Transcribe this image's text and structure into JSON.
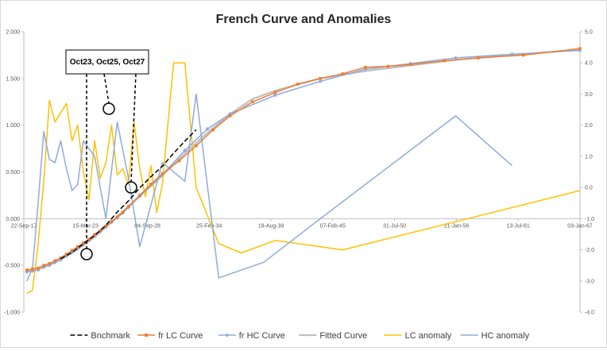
{
  "chart_data": {
    "type": "line",
    "title": "French Curve and Anomalies",
    "x_ticks": [
      "22-Sep-17",
      "15-Mar-23",
      "04-Sep-28",
      "25-Feb-34",
      "18-Aug-39",
      "07-Feb-45",
      "31-Jul-50",
      "21-Jan-56",
      "13-Jul-61",
      "03-Jan-67"
    ],
    "x_tick_years": [
      1917.73,
      1923.2,
      1928.68,
      1934.15,
      1939.63,
      1945.1,
      1950.58,
      1956.06,
      1961.53,
      1967.01
    ],
    "xlim": [
      1917.73,
      1967.01
    ],
    "y_left": {
      "ticks": [
        "2.000",
        "1.500",
        "1.000",
        "0.500",
        "0.000",
        "-0.500",
        "-1.000"
      ],
      "values": [
        2,
        1.5,
        1,
        0.5,
        0,
        -0.5,
        -1
      ],
      "range": [
        -1,
        2
      ]
    },
    "y_right": {
      "ticks": [
        "5.0",
        "4.0",
        "3.0",
        "2.0",
        "1.0",
        "0.0",
        "-1.0",
        "-2.0",
        "-3.0",
        "-4.0"
      ],
      "values": [
        5,
        4,
        3,
        2,
        1,
        0,
        -1,
        -2,
        -3,
        -4
      ],
      "range": [
        -4,
        5
      ]
    },
    "grid": false,
    "legend_position": "bottom",
    "annotation": {
      "text": "Oct23, Oct25, Oct27"
    },
    "series": [
      {
        "name": "Bnchmark",
        "color": "#000000",
        "dash": "6,3",
        "axis": "left",
        "marker": "none",
        "x": [
          1921.0,
          1922.0,
          1923.0,
          1924.0,
          1925.0,
          1926.0,
          1927.0,
          1928.0,
          1929.0,
          1930.0,
          1931.0,
          1932.0,
          1933.0
        ],
        "y": [
          -0.43,
          -0.36,
          -0.27,
          -0.18,
          -0.07,
          0.07,
          0.19,
          0.33,
          0.45,
          0.56,
          0.7,
          0.83,
          0.95
        ]
      },
      {
        "name": "fr LC Curve",
        "color": "#ed7d31",
        "axis": "left",
        "marker": "square",
        "x": [
          1918.0,
          1918.5,
          1919.0,
          1919.5,
          1920.0,
          1920.5,
          1921.0,
          1921.5,
          1922.0,
          1922.5,
          1923.0,
          1923.5,
          1924.0,
          1924.5,
          1925.0,
          1925.5,
          1926.0,
          1926.5,
          1927.0,
          1928.0,
          1929.0,
          1930.0,
          1931.5,
          1933.0,
          1934.5,
          1936.0,
          1938.0,
          1940.0,
          1942.0,
          1944.0,
          1946.0,
          1948.0,
          1950.0,
          1952.0,
          1955.0,
          1958.0,
          1962.0,
          1967.0
        ],
        "y": [
          -0.55,
          -0.54,
          -0.53,
          -0.5,
          -0.48,
          -0.45,
          -0.42,
          -0.38,
          -0.34,
          -0.3,
          -0.26,
          -0.22,
          -0.17,
          -0.13,
          -0.08,
          -0.03,
          0.02,
          0.07,
          0.13,
          0.25,
          0.37,
          0.48,
          0.62,
          0.78,
          0.95,
          1.1,
          1.25,
          1.35,
          1.44,
          1.5,
          1.55,
          1.62,
          1.63,
          1.65,
          1.69,
          1.72,
          1.75,
          1.82
        ]
      },
      {
        "name": "fr HC Curve",
        "color": "#8faadc",
        "axis": "left",
        "marker": "diamond",
        "x": [
          1918.0,
          1918.5,
          1919.0,
          1919.5,
          1920.0,
          1920.5,
          1921.0,
          1921.5,
          1922.0,
          1922.5,
          1923.0,
          1923.5,
          1924.0,
          1924.5,
          1925.0,
          1925.5,
          1926.0,
          1926.5,
          1927.0,
          1928.0,
          1930.0,
          1932.0,
          1934.0,
          1936.0,
          1940.0,
          1944.0,
          1948.0,
          1952.0,
          1956.0,
          1961.0,
          1967.0
        ],
        "y": [
          -0.57,
          -0.56,
          -0.55,
          -0.52,
          -0.5,
          -0.47,
          -0.44,
          -0.4,
          -0.36,
          -0.32,
          -0.28,
          -0.23,
          -0.18,
          -0.14,
          -0.09,
          -0.04,
          0.01,
          0.06,
          0.12,
          0.24,
          0.47,
          0.73,
          0.96,
          1.12,
          1.32,
          1.47,
          1.6,
          1.66,
          1.72,
          1.76,
          1.8
        ]
      },
      {
        "name": "Fitted Curve",
        "color": "#bfbfbf",
        "axis": "left",
        "marker": "none",
        "x": [
          1918.0,
          1920.0,
          1922.0,
          1924.0,
          1926.0,
          1928.0,
          1930.0,
          1932.0,
          1934.0,
          1936.0,
          1938.0,
          1940.0,
          1944.0,
          1948.0,
          1952.0,
          1956.0,
          1960.0,
          1967.0
        ],
        "y": [
          -0.56,
          -0.49,
          -0.37,
          -0.2,
          0.02,
          0.24,
          0.46,
          0.7,
          0.92,
          1.12,
          1.28,
          1.37,
          1.5,
          1.58,
          1.64,
          1.7,
          1.74,
          1.81
        ]
      },
      {
        "name": "LC anomaly",
        "color": "#ffc000",
        "axis": "right",
        "marker": "none",
        "x": [
          1918.0,
          1918.5,
          1919.0,
          1919.5,
          1920.0,
          1920.5,
          1921.0,
          1921.5,
          1922.0,
          1922.5,
          1923.0,
          1923.5,
          1924.0,
          1924.5,
          1925.0,
          1925.5,
          1926.0,
          1926.5,
          1927.0,
          1927.5,
          1928.0,
          1928.5,
          1929.0,
          1929.5,
          1930.0,
          1931.0,
          1932.0,
          1933.0,
          1935.0,
          1937.0,
          1940.0,
          1946.0,
          1967.0
        ],
        "y": [
          -3.4,
          -3.3,
          -1.8,
          0.2,
          2.8,
          2.1,
          2.4,
          2.7,
          1.5,
          2.0,
          0.5,
          -0.4,
          1.5,
          0.3,
          0.8,
          2.0,
          0.4,
          0.6,
          0.1,
          2.1,
          0.6,
          -0.3,
          0.7,
          -0.8,
          0.1,
          4.0,
          4.0,
          0.0,
          -1.8,
          -2.1,
          -1.7,
          -2.0,
          -0.1
        ]
      },
      {
        "name": "HC anomaly",
        "color": "#8faadc",
        "axis": "right",
        "marker": "none",
        "x": [
          1918.0,
          1918.5,
          1919.0,
          1919.5,
          1920.0,
          1920.5,
          1921.0,
          1921.5,
          1922.0,
          1922.5,
          1923.0,
          1924.0,
          1925.0,
          1926.0,
          1927.0,
          1928.0,
          1930.0,
          1932.0,
          1933.0,
          1935.0,
          1939.0,
          1944.0,
          1956.0,
          1961.0
        ],
        "y": [
          -3.0,
          -2.6,
          -0.5,
          1.8,
          0.9,
          0.8,
          1.5,
          0.6,
          -0.1,
          0.1,
          1.5,
          1.0,
          -1.0,
          2.1,
          0.3,
          -1.9,
          0.8,
          0.2,
          3.0,
          -2.9,
          -2.4,
          -1.0,
          2.3,
          0.7
        ]
      }
    ]
  }
}
